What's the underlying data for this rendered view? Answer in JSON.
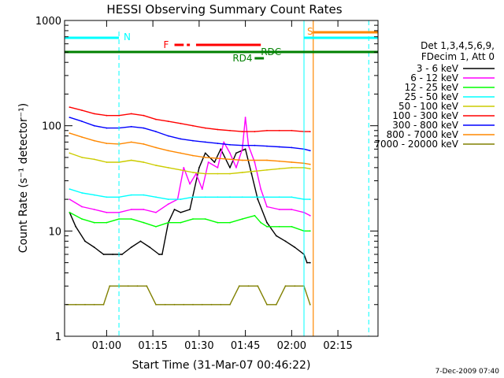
{
  "chart_data": {
    "type": "line",
    "title": "HESSI Observing Summary Count Rates",
    "xlabel": "Start Time (31-Mar-07 00:46:22)",
    "ylabel": "Count Rate (s⁻¹ detector⁻¹)",
    "y_scale": "log",
    "ylim": [
      1,
      1000
    ],
    "xlim": [
      "00:46:22",
      "02:28:00"
    ],
    "x_ticks": [
      "01:00",
      "01:15",
      "01:30",
      "01:45",
      "02:00",
      "02:15"
    ],
    "y_ticks": [
      "1",
      "10",
      "100",
      "1000"
    ],
    "grid": false,
    "legend_position": "right",
    "legend_header": [
      "Det 1,3,4,5,6,9,",
      "FDecim 1, Att 0"
    ],
    "footer": "7-Dec-2009 07:40",
    "series": [
      {
        "name": "3 - 6 keV",
        "color": "#000000",
        "x": [
          "00:48",
          "00:50",
          "00:53",
          "00:56",
          "00:59",
          "01:02",
          "01:05",
          "01:08",
          "01:11",
          "01:14",
          "01:17",
          "01:18",
          "01:20",
          "01:22",
          "01:24",
          "01:27",
          "01:30",
          "01:32",
          "01:35",
          "01:37",
          "01:40",
          "01:42",
          "01:45",
          "01:47",
          "01:49",
          "01:52",
          "01:55",
          "01:58",
          "02:01",
          "02:04",
          "02:05",
          "02:06"
        ],
        "y": [
          15,
          11,
          8,
          7,
          6,
          6,
          6,
          7,
          8,
          7,
          6,
          6,
          12,
          16,
          15,
          16,
          40,
          55,
          45,
          60,
          40,
          55,
          60,
          35,
          20,
          12,
          9,
          8,
          7,
          6,
          5,
          5
        ]
      },
      {
        "name": "6 - 12 keV",
        "color": "#ff00ff",
        "x": [
          "00:48",
          "00:52",
          "00:56",
          "01:00",
          "01:04",
          "01:08",
          "01:12",
          "01:16",
          "01:20",
          "01:23",
          "01:25",
          "01:27",
          "01:29",
          "01:31",
          "01:33",
          "01:36",
          "01:38",
          "01:40",
          "01:42",
          "01:44",
          "01:45",
          "01:46",
          "01:48",
          "01:50",
          "01:52",
          "01:56",
          "02:00",
          "02:04",
          "02:06"
        ],
        "y": [
          20,
          17,
          16,
          15,
          15,
          16,
          16,
          15,
          18,
          20,
          40,
          28,
          35,
          25,
          45,
          40,
          70,
          55,
          40,
          60,
          120,
          65,
          45,
          25,
          17,
          16,
          16,
          15,
          14
        ]
      },
      {
        "name": "12 - 25 keV",
        "color": "#00ff00",
        "x": [
          "00:48",
          "00:52",
          "00:56",
          "01:00",
          "01:04",
          "01:08",
          "01:12",
          "01:16",
          "01:20",
          "01:24",
          "01:28",
          "01:32",
          "01:36",
          "01:40",
          "01:44",
          "01:48",
          "01:50",
          "01:52",
          "01:56",
          "02:00",
          "02:04",
          "02:06"
        ],
        "y": [
          15,
          13,
          12,
          12,
          13,
          13,
          12,
          11,
          12,
          12,
          13,
          13,
          12,
          12,
          13,
          14,
          12,
          11,
          11,
          11,
          10,
          10
        ]
      },
      {
        "name": "25 - 50 keV",
        "color": "#00ffff",
        "x": [
          "00:48",
          "00:52",
          "00:56",
          "01:00",
          "01:04",
          "01:08",
          "01:12",
          "01:16",
          "01:20",
          "01:24",
          "01:28",
          "01:32",
          "01:36",
          "01:40",
          "01:44",
          "01:48",
          "01:52",
          "01:56",
          "02:00",
          "02:04",
          "02:06"
        ],
        "y": [
          25,
          23,
          22,
          21,
          21,
          22,
          22,
          21,
          20,
          20,
          21,
          21,
          21,
          21,
          21,
          21,
          21,
          21,
          21,
          20,
          20
        ]
      },
      {
        "name": "50 - 100 keV",
        "color": "#cccc00",
        "x": [
          "00:48",
          "00:52",
          "00:56",
          "01:00",
          "01:04",
          "01:08",
          "01:12",
          "01:16",
          "01:20",
          "01:24",
          "01:28",
          "01:32",
          "01:36",
          "01:40",
          "01:44",
          "01:48",
          "01:52",
          "01:56",
          "02:00",
          "02:04",
          "02:06"
        ],
        "y": [
          55,
          50,
          48,
          45,
          45,
          47,
          45,
          42,
          40,
          38,
          36,
          35,
          35,
          35,
          36,
          37,
          38,
          39,
          40,
          40,
          39
        ]
      },
      {
        "name": "100 - 300 keV",
        "color": "#ff0000",
        "x": [
          "00:48",
          "00:52",
          "00:56",
          "01:00",
          "01:04",
          "01:08",
          "01:12",
          "01:16",
          "01:20",
          "01:24",
          "01:28",
          "01:32",
          "01:36",
          "01:40",
          "01:44",
          "01:48",
          "01:52",
          "01:56",
          "02:00",
          "02:04",
          "02:06"
        ],
        "y": [
          150,
          140,
          130,
          125,
          125,
          130,
          125,
          115,
          110,
          105,
          100,
          95,
          92,
          90,
          88,
          88,
          90,
          90,
          90,
          88,
          88
        ]
      },
      {
        "name": "300 - 800 keV",
        "color": "#0000ff",
        "x": [
          "00:48",
          "00:52",
          "00:56",
          "01:00",
          "01:04",
          "01:08",
          "01:12",
          "01:16",
          "01:20",
          "01:24",
          "01:28",
          "01:32",
          "01:36",
          "01:40",
          "01:44",
          "01:48",
          "01:52",
          "01:56",
          "02:00",
          "02:04",
          "02:06"
        ],
        "y": [
          120,
          110,
          100,
          95,
          95,
          98,
          95,
          88,
          80,
          75,
          72,
          70,
          68,
          66,
          65,
          65,
          64,
          63,
          62,
          60,
          58
        ]
      },
      {
        "name": "800 - 7000 keV",
        "color": "#ff8800",
        "x": [
          "00:48",
          "00:52",
          "00:56",
          "01:00",
          "01:04",
          "01:08",
          "01:12",
          "01:16",
          "01:20",
          "01:24",
          "01:28",
          "01:32",
          "01:36",
          "01:40",
          "01:44",
          "01:48",
          "01:52",
          "01:56",
          "02:00",
          "02:04",
          "02:06"
        ],
        "y": [
          85,
          78,
          72,
          68,
          67,
          70,
          67,
          62,
          58,
          55,
          52,
          50,
          49,
          48,
          47,
          47,
          47,
          46,
          45,
          44,
          43
        ]
      },
      {
        "name": "7000 - 20000 keV",
        "color": "#808000",
        "x": [
          "00:47",
          "00:50",
          "00:53",
          "00:56",
          "00:59",
          "01:01",
          "01:04",
          "01:07",
          "01:10",
          "01:13",
          "01:16",
          "01:19",
          "01:22",
          "01:25",
          "01:28",
          "01:31",
          "01:34",
          "01:37",
          "01:40",
          "01:43",
          "01:46",
          "01:49",
          "01:52",
          "01:55",
          "01:58",
          "02:01",
          "02:04",
          "02:06"
        ],
        "y": [
          2,
          2,
          2,
          2,
          2,
          3,
          3,
          3,
          3,
          3,
          2,
          2,
          2,
          2,
          2,
          2,
          2,
          2,
          2,
          3,
          3,
          3,
          2,
          2,
          3,
          3,
          3,
          2
        ]
      }
    ],
    "annotations": {
      "N": {
        "label": "N"
      },
      "S": {
        "label": "S"
      },
      "F": {
        "label": "F"
      },
      "RDC": {
        "label": "RDC"
      },
      "RD4": {
        "label": "RD4"
      }
    }
  }
}
